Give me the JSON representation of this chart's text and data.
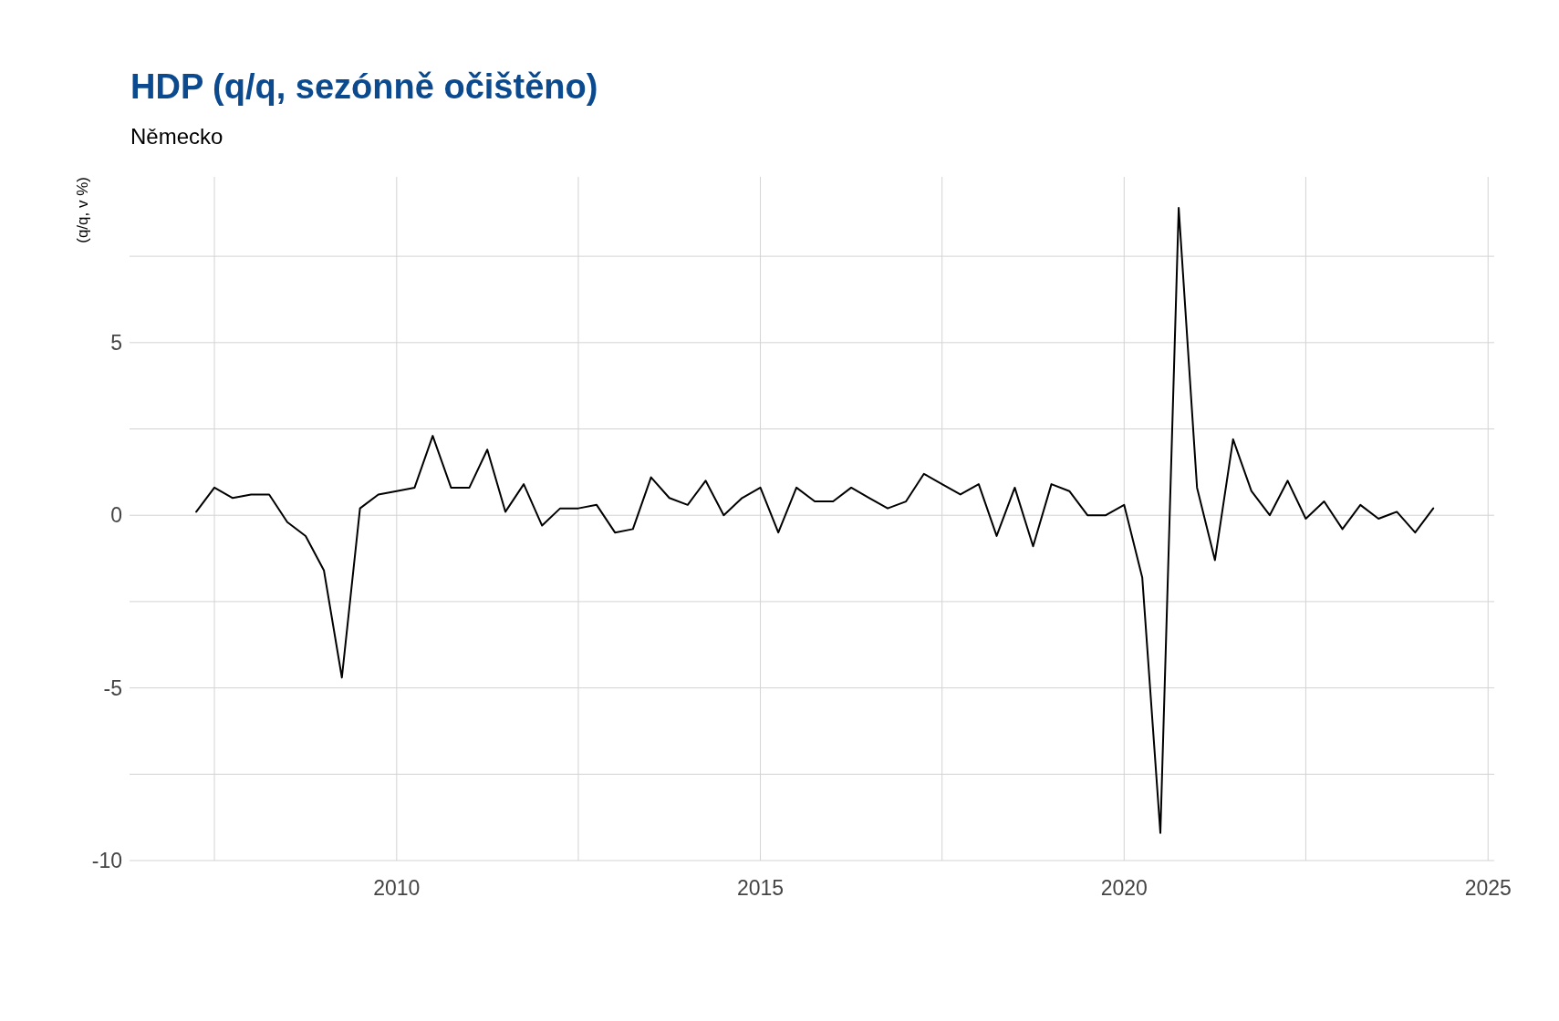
{
  "chart_data": {
    "type": "line",
    "title": "HDP (q/q, sezónně očištěno)",
    "subtitle": "Německo",
    "ylabel": "(q/q, v %)",
    "x": [
      "2007-04",
      "2007-07",
      "2007-10",
      "2008-01",
      "2008-04",
      "2008-07",
      "2008-10",
      "2009-01",
      "2009-04",
      "2009-07",
      "2009-10",
      "2010-01",
      "2010-04",
      "2010-07",
      "2010-10",
      "2011-01",
      "2011-04",
      "2011-07",
      "2011-10",
      "2012-01",
      "2012-04",
      "2012-07",
      "2012-10",
      "2013-01",
      "2013-04",
      "2013-07",
      "2013-10",
      "2014-01",
      "2014-04",
      "2014-07",
      "2014-10",
      "2015-01",
      "2015-04",
      "2015-07",
      "2015-10",
      "2016-01",
      "2016-04",
      "2016-07",
      "2016-10",
      "2017-01",
      "2017-04",
      "2017-07",
      "2017-10",
      "2018-01",
      "2018-04",
      "2018-07",
      "2018-10",
      "2019-01",
      "2019-04",
      "2019-07",
      "2019-10",
      "2020-01",
      "2020-04",
      "2020-07",
      "2020-10",
      "2021-01",
      "2021-04",
      "2021-07",
      "2021-10",
      "2022-01",
      "2022-04",
      "2022-07",
      "2022-10",
      "2023-01",
      "2023-04",
      "2023-07",
      "2023-10",
      "2024-01",
      "2024-04"
    ],
    "series": [
      {
        "color": "#000000",
        "values": [
          0.1,
          0.8,
          0.5,
          0.6,
          0.6,
          -0.2,
          -0.6,
          -1.6,
          -4.7,
          0.2,
          0.6,
          0.7,
          0.8,
          2.3,
          0.8,
          0.8,
          1.9,
          0.1,
          0.9,
          -0.3,
          0.2,
          0.2,
          0.3,
          -0.5,
          -0.4,
          1.1,
          0.5,
          0.3,
          1.0,
          0.0,
          0.5,
          0.8,
          -0.5,
          0.8,
          0.4,
          0.4,
          0.8,
          0.5,
          0.2,
          0.4,
          1.2,
          0.9,
          0.6,
          0.9,
          -0.6,
          0.8,
          -0.9,
          0.9,
          0.7,
          0.0,
          0.0,
          0.3,
          -1.8,
          -9.2,
          8.9,
          0.8,
          -1.3,
          2.2,
          0.7,
          0.0,
          1.0,
          -0.1,
          0.4,
          -0.4,
          0.3,
          -0.1,
          0.1,
          -0.5,
          0.2
        ]
      }
    ],
    "xlim": [
      "2006-05",
      "2025-02"
    ],
    "xticks": [
      {
        "value": "2007-07",
        "label": null
      },
      {
        "value": "2010-01",
        "label": "2010"
      },
      {
        "value": "2012-07",
        "label": null
      },
      {
        "value": "2015-01",
        "label": "2015"
      },
      {
        "value": "2017-07",
        "label": null
      },
      {
        "value": "2020-01",
        "label": "2020"
      },
      {
        "value": "2022-07",
        "label": null
      },
      {
        "value": "2025-01",
        "label": "2025"
      }
    ],
    "ylim": [
      -10,
      9.8
    ],
    "yticks": [
      -10,
      {
        "value": -7.5,
        "label": null
      },
      -5,
      {
        "value": -2.5,
        "label": null
      },
      0,
      {
        "value": 2.5,
        "label": null
      },
      5,
      {
        "value": 7.5,
        "label": null
      }
    ],
    "grid": true,
    "marker": "none",
    "line_style": "solid"
  }
}
